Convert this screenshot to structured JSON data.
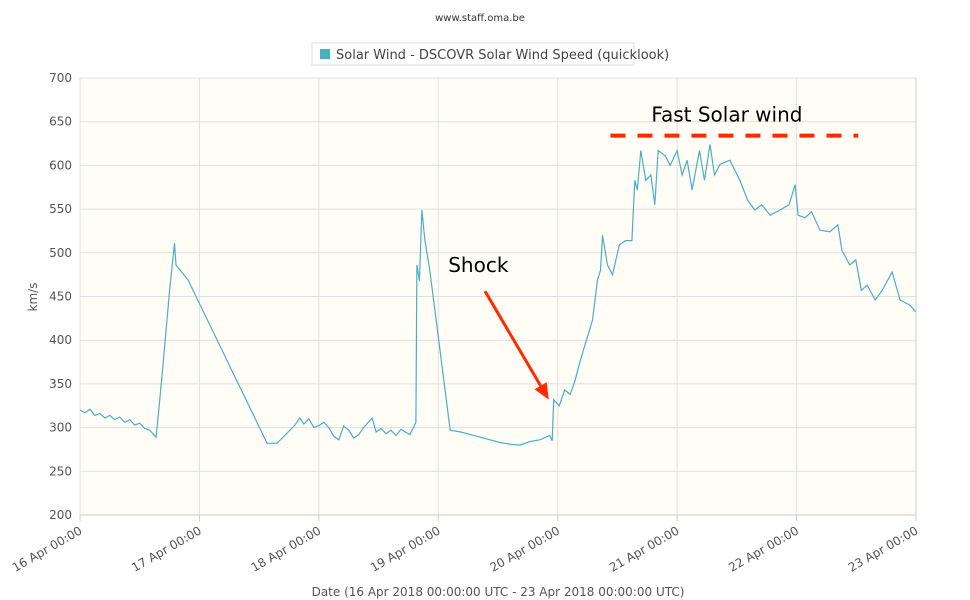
{
  "chart_data": {
    "type": "line",
    "credit": "www.staff.oma.be",
    "legend": {
      "label": "Solar Wind - DSCOVR Solar Wind Speed (quicklook)",
      "placement": "top-center"
    },
    "xlabel": "Date (16 Apr 2018 00:00:00 UTC - 23 Apr 2018 00:00:00 UTC)",
    "ylabel": "km/s",
    "ylim": [
      200,
      700
    ],
    "xlim_hours": [
      0,
      168
    ],
    "x_unit": "hours since 16 Apr 2018 00:00 UTC",
    "yticks": [
      200,
      250,
      300,
      350,
      400,
      450,
      500,
      550,
      600,
      650,
      700
    ],
    "xtick_labels": [
      "16 Apr 00:00",
      "17 Apr 00:00",
      "18 Apr 00:00",
      "19 Apr 00:00",
      "20 Apr 00:00",
      "21 Apr 00:00",
      "22 Apr 00:00",
      "23 Apr 00:00"
    ],
    "grid": true,
    "colors": {
      "series": "#4bafc4",
      "plot_bg": "#fffdf5",
      "annotation": "#ff2a00"
    },
    "series": [
      {
        "name": "Solar Wind - DSCOVR Solar Wind Speed (quicklook)",
        "points": [
          [
            0,
            320
          ],
          [
            1,
            317
          ],
          [
            2,
            321
          ],
          [
            3,
            314
          ],
          [
            4,
            316
          ],
          [
            5,
            311
          ],
          [
            6,
            314
          ],
          [
            7,
            309
          ],
          [
            8,
            312
          ],
          [
            9,
            306
          ],
          [
            10,
            309
          ],
          [
            11,
            303
          ],
          [
            12,
            305
          ],
          [
            13,
            299
          ],
          [
            14,
            297
          ],
          [
            15.3,
            289
          ],
          [
            16.5,
            360
          ],
          [
            18,
            457
          ],
          [
            19,
            511
          ],
          [
            19.3,
            486
          ],
          [
            21.7,
            469
          ],
          [
            37.6,
            282
          ],
          [
            39.6,
            282
          ],
          [
            43.2,
            303
          ],
          [
            44.2,
            311
          ],
          [
            45,
            304
          ],
          [
            46,
            310
          ],
          [
            47,
            300
          ],
          [
            48.2,
            303
          ],
          [
            49,
            306
          ],
          [
            50,
            300
          ],
          [
            51,
            290
          ],
          [
            52,
            286
          ],
          [
            53,
            302
          ],
          [
            54,
            297
          ],
          [
            55,
            288
          ],
          [
            56,
            292
          ],
          [
            57,
            300
          ],
          [
            58.7,
            311
          ],
          [
            59.5,
            295
          ],
          [
            60.5,
            299
          ],
          [
            61.5,
            293
          ],
          [
            62.5,
            297
          ],
          [
            63.5,
            291
          ],
          [
            64.5,
            298
          ],
          [
            66.3,
            292
          ],
          [
            67.5,
            306
          ],
          [
            67.7,
            486
          ],
          [
            68.2,
            468
          ],
          [
            68.7,
            549
          ],
          [
            69.3,
            515
          ],
          [
            70.3,
            480
          ],
          [
            74.4,
            297
          ],
          [
            76.5,
            295
          ],
          [
            78.5,
            292
          ],
          [
            80.4,
            289
          ],
          [
            82.4,
            286
          ],
          [
            84.4,
            283
          ],
          [
            86.4,
            281
          ],
          [
            88.4,
            280
          ],
          [
            90.4,
            284
          ],
          [
            92.4,
            286
          ],
          [
            94.4,
            291
          ],
          [
            94.9,
            285
          ],
          [
            95.2,
            332
          ],
          [
            96.3,
            325
          ],
          [
            97.4,
            343
          ],
          [
            98.5,
            338
          ],
          [
            99.5,
            354
          ],
          [
            100.5,
            376
          ],
          [
            101.5,
            395
          ],
          [
            103,
            423
          ],
          [
            104,
            469
          ],
          [
            104.6,
            480
          ],
          [
            105,
            520
          ],
          [
            106,
            486
          ],
          [
            107,
            475
          ],
          [
            108.4,
            509
          ],
          [
            109.6,
            514
          ],
          [
            110.9,
            514
          ],
          [
            111.5,
            583
          ],
          [
            112,
            572
          ],
          [
            112.7,
            617
          ],
          [
            113.7,
            583
          ],
          [
            114.7,
            589
          ],
          [
            115.5,
            555
          ],
          [
            116.2,
            617
          ],
          [
            117.6,
            611
          ],
          [
            118.6,
            600
          ],
          [
            120,
            617
          ],
          [
            121,
            589
          ],
          [
            122,
            606
          ],
          [
            123,
            572
          ],
          [
            124.5,
            617
          ],
          [
            125.5,
            583
          ],
          [
            126.6,
            624
          ],
          [
            127.5,
            589
          ],
          [
            128.6,
            601
          ],
          [
            130.6,
            606
          ],
          [
            132.6,
            583
          ],
          [
            134.2,
            560
          ],
          [
            135.6,
            549
          ],
          [
            137,
            555
          ],
          [
            138.7,
            543
          ],
          [
            140.7,
            549
          ],
          [
            142.5,
            555
          ],
          [
            143.7,
            578
          ],
          [
            144.3,
            543
          ],
          [
            145.7,
            540
          ],
          [
            147,
            547
          ],
          [
            148.7,
            526
          ],
          [
            150.7,
            524
          ],
          [
            152.3,
            532
          ],
          [
            153.1,
            503
          ],
          [
            154.7,
            486
          ],
          [
            155.9,
            492
          ],
          [
            157,
            457
          ],
          [
            158.2,
            463
          ],
          [
            159.8,
            446
          ],
          [
            161.2,
            457
          ],
          [
            163.2,
            478
          ],
          [
            164.8,
            446
          ],
          [
            166.8,
            440
          ],
          [
            168,
            432
          ]
        ]
      }
    ],
    "annotations": {
      "shock": {
        "text": "Shock",
        "text_at": [
          74,
          478
        ],
        "arrow_from": [
          81.4,
          456
        ],
        "arrow_to": [
          94.2,
          332
        ]
      },
      "fast_wind": {
        "text": "Fast Solar wind",
        "text_at": [
          130,
          650
        ],
        "dash_level": 634,
        "dash_range": [
          106.6,
          156.4
        ]
      }
    }
  }
}
